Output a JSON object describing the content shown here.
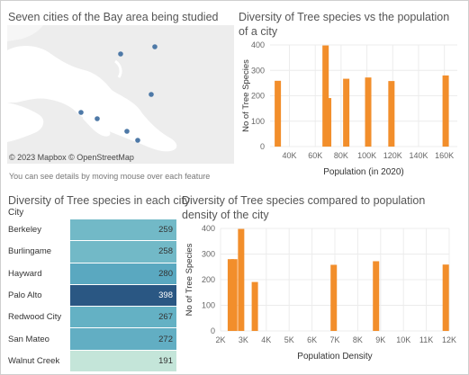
{
  "map_panel": {
    "title": "Seven cities of the Bay area being studied",
    "attribution": "© 2023 Mapbox © OpenStreetMap",
    "hint": "You can see details by moving mouse over each feature",
    "point_color": "#4e79a7"
  },
  "pop_chart": {
    "title": "Diversity of Tree species vs the population of a city",
    "chart_data": {
      "type": "bar",
      "title": "Diversity of Tree species vs the population of a city",
      "xlabel": "Population (in 2020)",
      "ylabel": "No of Tree Species",
      "xlim": [
        25000,
        170000
      ],
      "ylim": [
        0,
        400
      ],
      "x_ticks": [
        "40K",
        "60K",
        "80K",
        "100K",
        "120K",
        "140K",
        "160K"
      ],
      "y_ticks": [
        "0",
        "100",
        "200",
        "300",
        "400"
      ],
      "x": [
        31000,
        68000,
        70000,
        84000,
        101000,
        119000,
        161000
      ],
      "values": [
        259,
        398,
        191,
        267,
        272,
        258,
        280
      ],
      "color": "#f28e2b"
    }
  },
  "city_table": {
    "title": "Diversity of Tree species in each city",
    "header": "City",
    "chart_data": {
      "type": "heatmap",
      "categories": [
        "Berkeley",
        "Burlingame",
        "Hayward",
        "Palo Alto",
        "Redwood City",
        "San Mateo",
        "Walnut Creek"
      ],
      "values": [
        259,
        258,
        280,
        398,
        267,
        272,
        191
      ]
    },
    "cell_colors": [
      "#72b9c7",
      "#72b9c7",
      "#5aa8c0",
      "#2a5783",
      "#64b1c4",
      "#62aec3",
      "#c4e5d9"
    ],
    "text_colors": [
      "#333333",
      "#333333",
      "#333333",
      "#ffffff",
      "#333333",
      "#333333",
      "#333333"
    ]
  },
  "density_chart": {
    "title": "Diversity of Tree species compared to population density of the city",
    "chart_data": {
      "type": "bar",
      "title": "Diversity of Tree species compared to population density of the city",
      "xlabel": "Population Density",
      "ylabel": "No of Tree Species",
      "xlim": [
        2000,
        12000
      ],
      "ylim": [
        0,
        400
      ],
      "x_ticks": [
        "2K",
        "3K",
        "4K",
        "5K",
        "6K",
        "7K",
        "8K",
        "9K",
        "10K",
        "11K",
        "12K"
      ],
      "y_ticks": [
        "0",
        "100",
        "200",
        "300",
        "400"
      ],
      "x": [
        2450,
        2600,
        2900,
        3500,
        6950,
        8800,
        11850
      ],
      "values": [
        280,
        280,
        398,
        191,
        258,
        272,
        259
      ],
      "color": "#f28e2b"
    }
  }
}
